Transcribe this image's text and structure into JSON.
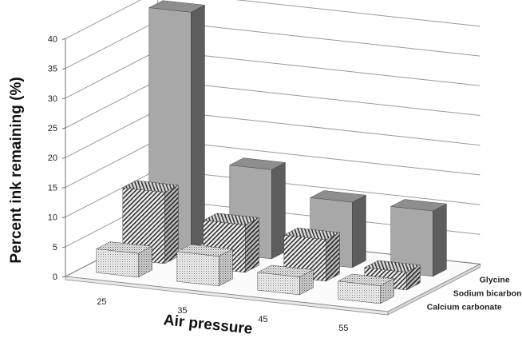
{
  "chart_data": {
    "type": "bar",
    "subtype": "3d-column",
    "title": "",
    "xlabel": "Air pressure",
    "ylabel": "Percent ink remaining (%)",
    "ylim": [
      0,
      40
    ],
    "yticks": [
      "0",
      "5",
      "10",
      "15",
      "20",
      "25",
      "30",
      "35",
      "40"
    ],
    "categories": [
      "25",
      "35",
      "45",
      "55"
    ],
    "series": [
      {
        "name": "Calcium carbonate",
        "values": [
          4,
          5,
          3,
          3
        ],
        "color": "#e6e6e6",
        "pattern": "dots"
      },
      {
        "name": "Sodium bicarbonate",
        "values": [
          12,
          8,
          7,
          3
        ],
        "color": "#cfcfcf",
        "pattern": "diagonal"
      },
      {
        "name": "Glycine",
        "values": [
          40,
          15,
          11,
          11
        ],
        "color": "#9a9a9a",
        "pattern": "solid"
      }
    ],
    "grid": true
  }
}
